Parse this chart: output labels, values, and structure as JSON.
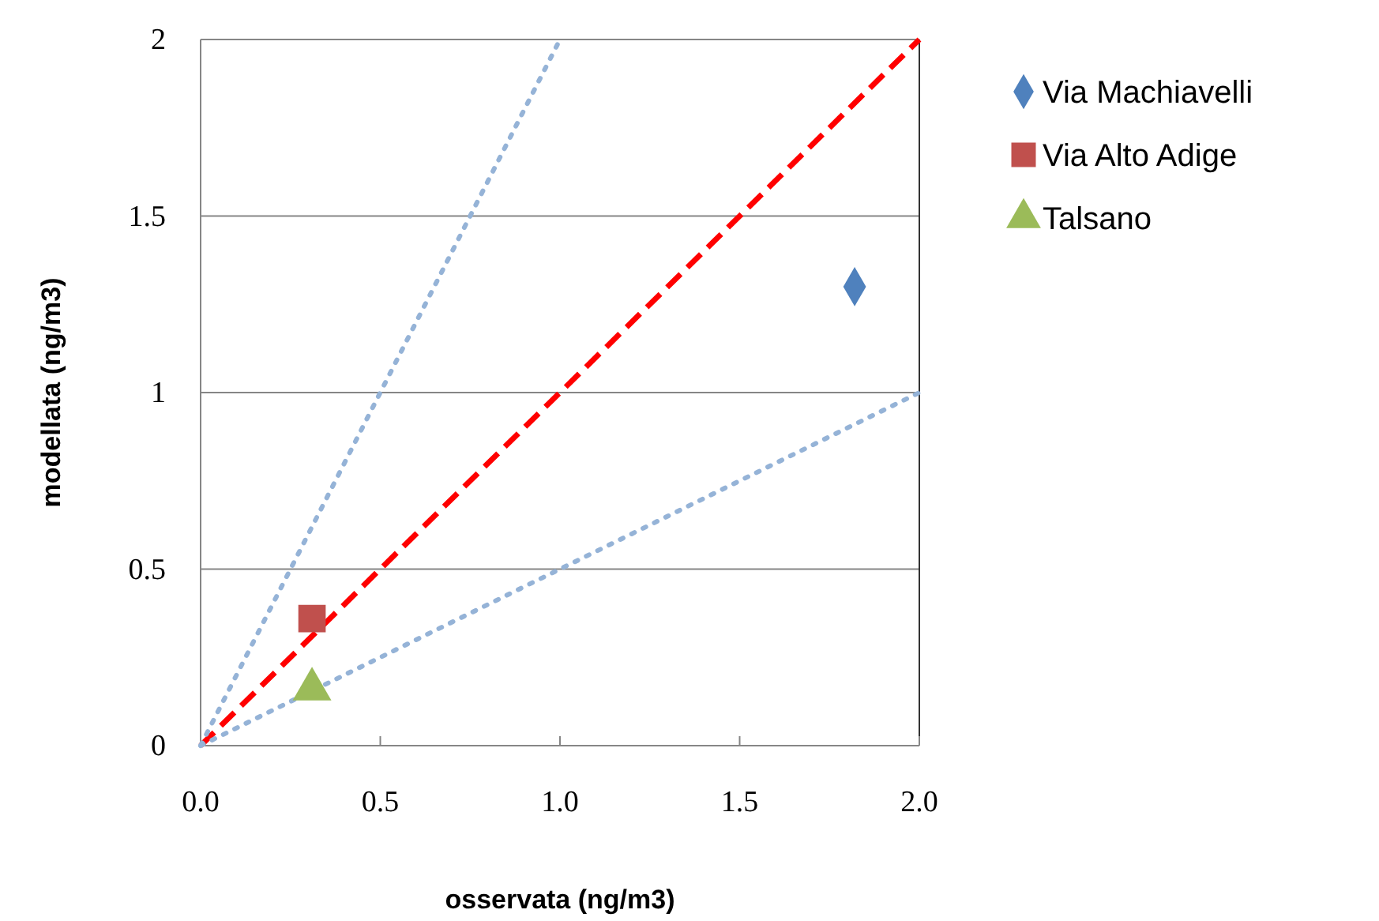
{
  "chart_data": {
    "type": "scatter",
    "xlabel": "osservata (ng/m3)",
    "ylabel": "modellata (ng/m3)",
    "xlim": [
      0,
      2
    ],
    "xticks": [
      {
        "value": 0,
        "label": "0.0"
      },
      {
        "value": 0.5,
        "label": "0.5"
      },
      {
        "value": 1,
        "label": "1.0"
      },
      {
        "value": 1.5,
        "label": "1.5"
      },
      {
        "value": 2,
        "label": "2.0"
      }
    ],
    "ylim": [
      0,
      2
    ],
    "yticks": [
      0,
      0.5,
      1,
      1.5,
      2
    ],
    "grid": "y",
    "legend": "top right",
    "series": [
      {
        "name": "Via Machiavelli",
        "color": "#4f81bd",
        "x": [
          1.82
        ],
        "values": [
          1.3
        ],
        "marker": "diamond"
      },
      {
        "name": "Via Alto Adige",
        "color": "#c0504d",
        "x": [
          0.31
        ],
        "values": [
          0.36
        ],
        "marker": "square"
      },
      {
        "name": "Talsano",
        "color": "#9bbb59",
        "x": [
          0.31
        ],
        "values": [
          0.16
        ],
        "marker": "triangle"
      },
      {
        "type": "line",
        "color": "#ff0000",
        "x": [
          0,
          2
        ],
        "values": [
          0,
          2
        ],
        "line_style": "dashed",
        "marker": "none"
      },
      {
        "type": "line",
        "color": "#95b3d7",
        "x": [
          0,
          1
        ],
        "values": [
          0,
          2
        ],
        "line_style": "dotted",
        "marker": "none"
      },
      {
        "type": "line",
        "color": "#95b3d7",
        "x": [
          0,
          2
        ],
        "values": [
          0,
          1
        ],
        "line_style": "dotted",
        "marker": "none"
      }
    ]
  }
}
